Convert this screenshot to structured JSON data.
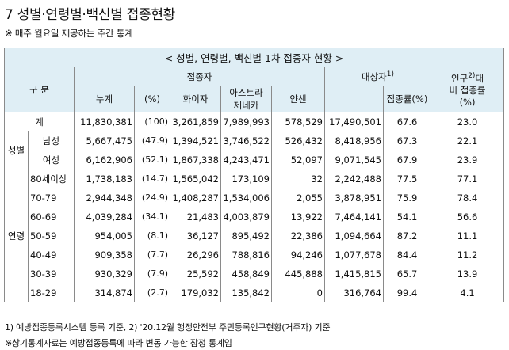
{
  "title": "7 성별·연령별·백신별 접종현황",
  "subtitle": "※ 매주 월요일 제공하는 주간 통계",
  "table": {
    "banner": "< 성별, 연령별, 백신별 1차 접종자 현황 >",
    "headers": {
      "category": "구 분",
      "vaccinated_group": "접종자",
      "total": "누계",
      "pct": "(%)",
      "pfizer": "화이자",
      "az": "아스트라\n제네카",
      "janssen": "얀센",
      "target": "대상자",
      "target_sup": "1)",
      "rate": "접종률(%)",
      "pop_ratio": "인구2대비 접종률(%)",
      "pop_ratio_l1": "인구",
      "pop_ratio_sup": "2)",
      "pop_ratio_l1b": "대",
      "pop_ratio_l2": "비 접종률",
      "pop_ratio_l3": "(%)"
    },
    "groups": {
      "sex": "성별",
      "age": "연령"
    },
    "rows": [
      {
        "label": "계",
        "total": "11,830,381",
        "pct": "(100)",
        "pfizer": "3,261,859",
        "az": "7,989,993",
        "janssen": "578,529",
        "target": "17,490,501",
        "rate": "67.6",
        "pop_rate": "23.0"
      },
      {
        "label": "남성",
        "total": "5,667,475",
        "pct": "(47.9)",
        "pfizer": "1,394,521",
        "az": "3,746,522",
        "janssen": "526,432",
        "target": "8,418,956",
        "rate": "67.3",
        "pop_rate": "22.1"
      },
      {
        "label": "여성",
        "total": "6,162,906",
        "pct": "(52.1)",
        "pfizer": "1,867,338",
        "az": "4,243,471",
        "janssen": "52,097",
        "target": "9,071,545",
        "rate": "67.9",
        "pop_rate": "23.9"
      },
      {
        "label": "80세이상",
        "total": "1,738,183",
        "pct": "(14.7)",
        "pfizer": "1,565,042",
        "az": "173,109",
        "janssen": "32",
        "target": "2,242,488",
        "rate": "77.5",
        "pop_rate": "77.1"
      },
      {
        "label": "70-79",
        "total": "2,944,348",
        "pct": "(24.9)",
        "pfizer": "1,408,287",
        "az": "1,534,006",
        "janssen": "2,055",
        "target": "3,878,951",
        "rate": "75.9",
        "pop_rate": "78.4"
      },
      {
        "label": "60-69",
        "total": "4,039,284",
        "pct": "(34.1)",
        "pfizer": "21,483",
        "az": "4,003,879",
        "janssen": "13,922",
        "target": "7,464,141",
        "rate": "54.1",
        "pop_rate": "56.6"
      },
      {
        "label": "50-59",
        "total": "954,005",
        "pct": "(8.1)",
        "pfizer": "36,127",
        "az": "895,492",
        "janssen": "22,386",
        "target": "1,094,664",
        "rate": "87.2",
        "pop_rate": "11.1"
      },
      {
        "label": "40-49",
        "total": "909,358",
        "pct": "(7.7)",
        "pfizer": "26,296",
        "az": "788,816",
        "janssen": "94,246",
        "target": "1,077,678",
        "rate": "84.4",
        "pop_rate": "11.2"
      },
      {
        "label": "30-39",
        "total": "930,329",
        "pct": "(7.9)",
        "pfizer": "25,592",
        "az": "458,849",
        "janssen": "445,888",
        "target": "1,415,815",
        "rate": "65.7",
        "pop_rate": "13.9"
      },
      {
        "label": "18-29",
        "total": "314,874",
        "pct": "(2.7)",
        "pfizer": "179,032",
        "az": "135,842",
        "janssen": "0",
        "target": "316,764",
        "rate": "99.4",
        "pop_rate": "4.1"
      }
    ]
  },
  "footnotes": {
    "line1": "1) 예방접종등록시스템 등록 기준,       2) '20.12월 행정안전부 주민등록인구현황(거주자) 기준",
    "line2": "※상기통계자료는 예방접종등록에 따라 변동 가능한 잠정 통계임"
  },
  "colors": {
    "header_bg": "#dfeef5",
    "rule_accent": "#2f7fa8",
    "grid": "#8a8a8a"
  }
}
